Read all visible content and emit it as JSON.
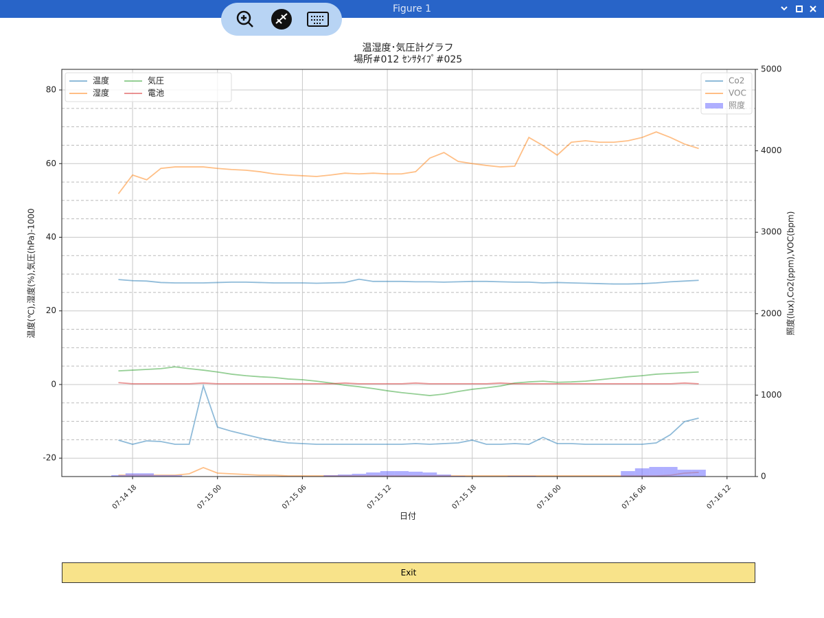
{
  "window": {
    "title": "Figure 1"
  },
  "button": {
    "label": "Exit"
  },
  "chart_data": {
    "type": "line",
    "title": "温湿度･気圧計グラフ",
    "subtitle": "場所#012 ｾﾝｻﾀｲﾌﾟ#025",
    "xlabel": "日付",
    "ylabel": "温度(℃),湿度(%),気圧(hPa)-1000",
    "y2label": "照度(lux),Co2(ppm),VOC(bpm)",
    "x": [
      "07-14 17",
      "07-14 18",
      "07-14 19",
      "07-14 20",
      "07-14 21",
      "07-14 22",
      "07-14 23",
      "07-15 00",
      "07-15 01",
      "07-15 02",
      "07-15 03",
      "07-15 04",
      "07-15 05",
      "07-15 06",
      "07-15 07",
      "07-15 08",
      "07-15 09",
      "07-15 10",
      "07-15 11",
      "07-15 12",
      "07-15 13",
      "07-15 14",
      "07-15 15",
      "07-15 16",
      "07-15 17",
      "07-15 18",
      "07-15 19",
      "07-15 20",
      "07-15 21",
      "07-15 22",
      "07-15 23",
      "07-16 00",
      "07-16 01",
      "07-16 02",
      "07-16 03",
      "07-16 04",
      "07-16 05",
      "07-16 06",
      "07-16 07",
      "07-16 08",
      "07-16 09",
      "07-16 10"
    ],
    "xlim": [
      "07-14 13",
      "07-16 14"
    ],
    "xticks": [
      "07-14 18",
      "07-15 00",
      "07-15 06",
      "07-15 12",
      "07-15 18",
      "07-16 00",
      "07-16 06",
      "07-16 12"
    ],
    "ylim": [
      -25,
      85.6
    ],
    "yticks": [
      -20,
      0,
      20,
      40,
      60,
      80
    ],
    "yminorticks": [
      -15,
      -10,
      -5,
      5,
      10,
      15,
      25,
      30,
      35,
      45,
      50,
      55,
      65,
      70,
      75
    ],
    "y2lim": [
      0,
      5000
    ],
    "y2ticks": [
      0,
      1000,
      2000,
      3000,
      4000,
      5000
    ],
    "grid": true,
    "alpha": 0.5,
    "legend_loc": "upper left",
    "legend2_loc": "upper right",
    "series": [
      {
        "name": "温度",
        "color": "#1f77b4",
        "values": [
          28.5,
          28.2,
          28.1,
          27.7,
          27.6,
          27.6,
          27.6,
          27.7,
          27.8,
          27.8,
          27.7,
          27.6,
          27.6,
          27.6,
          27.5,
          27.6,
          27.7,
          28.6,
          28.0,
          28.0,
          28.0,
          27.9,
          27.9,
          27.8,
          27.9,
          28.0,
          28.0,
          27.9,
          27.8,
          27.8,
          27.6,
          27.7,
          27.6,
          27.5,
          27.4,
          27.3,
          27.3,
          27.4,
          27.6,
          27.9,
          28.1,
          28.3
        ]
      },
      {
        "name": "湿度",
        "color": "#ff7f0e",
        "values": [
          51.8,
          56.9,
          55.6,
          58.7,
          59.1,
          59.1,
          59.1,
          58.7,
          58.4,
          58.2,
          57.8,
          57.2,
          56.9,
          56.7,
          56.5,
          56.9,
          57.4,
          57.2,
          57.4,
          57.2,
          57.2,
          57.8,
          61.5,
          63.0,
          60.6,
          60.0,
          59.5,
          59.1,
          59.3,
          67.1,
          64.9,
          62.3,
          65.8,
          66.2,
          65.8,
          65.8,
          66.2,
          67.1,
          68.6,
          67.1,
          65.3,
          64.1
        ]
      },
      {
        "name": "気圧",
        "color": "#2ca02c",
        "values": [
          3.7,
          3.9,
          4.1,
          4.3,
          4.8,
          4.3,
          3.9,
          3.4,
          2.8,
          2.4,
          2.1,
          1.9,
          1.5,
          1.3,
          0.9,
          0.4,
          -0.2,
          -0.6,
          -1.1,
          -1.7,
          -2.2,
          -2.6,
          -3.0,
          -2.6,
          -1.9,
          -1.3,
          -0.9,
          -0.4,
          0.4,
          0.7,
          0.9,
          0.6,
          0.7,
          0.9,
          1.3,
          1.7,
          2.1,
          2.4,
          2.8,
          3.0,
          3.2,
          3.4
        ]
      },
      {
        "name": "電池",
        "color": "#d62728",
        "values": [
          0.5,
          0.2,
          0.2,
          0.2,
          0.2,
          0.2,
          0.4,
          0.2,
          0.2,
          0.2,
          0.2,
          0.2,
          0.2,
          0.2,
          0.2,
          0.2,
          0.4,
          0.2,
          0.2,
          0.2,
          0.2,
          0.4,
          0.2,
          0.2,
          0.2,
          0.2,
          0.2,
          0.4,
          0.2,
          0.2,
          0.2,
          0.2,
          0.2,
          0.2,
          0.2,
          0.2,
          0.2,
          0.2,
          0.2,
          0.2,
          0.4,
          0.2
        ]
      },
      {
        "name": "Co2",
        "color": "#1f77b4",
        "axis": "y2",
        "values": [
          447,
          396,
          438,
          430,
          396,
          396,
          1113,
          607,
          556,
          514,
          472,
          438,
          413,
          405,
          396,
          396,
          396,
          396,
          396,
          396,
          396,
          405,
          396,
          405,
          413,
          447,
          396,
          396,
          405,
          396,
          481,
          405,
          405,
          396,
          396,
          396,
          396,
          396,
          413,
          514,
          675,
          717
        ]
      },
      {
        "name": "VOC",
        "color": "#ff7f0e",
        "axis": "y2",
        "values": [
          17,
          17,
          17,
          17,
          17,
          34,
          110,
          42,
          34,
          25,
          17,
          17,
          8,
          8,
          8,
          8,
          8,
          8,
          8,
          8,
          8,
          8,
          8,
          8,
          8,
          8,
          8,
          8,
          8,
          8,
          8,
          8,
          8,
          8,
          8,
          8,
          8,
          8,
          8,
          17,
          42,
          51
        ]
      },
      {
        "name": "照度",
        "color": "#6060ff",
        "axis": "y2",
        "type": "bar",
        "values": [
          17,
          40,
          40,
          17,
          17,
          0,
          0,
          0,
          0,
          0,
          0,
          0,
          0,
          0,
          0,
          17,
          25,
          34,
          50,
          67,
          67,
          60,
          50,
          25,
          8,
          0,
          0,
          0,
          8,
          8,
          0,
          0,
          0,
          0,
          0,
          0,
          67,
          101,
          118,
          118,
          84,
          84
        ]
      }
    ]
  }
}
